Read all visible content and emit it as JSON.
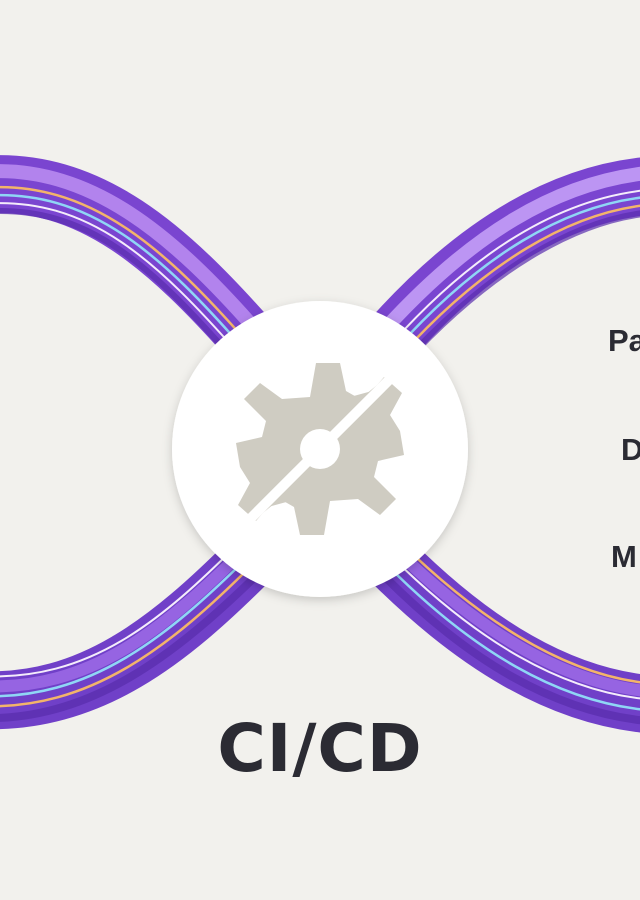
{
  "diagram": {
    "title": "CI/CD",
    "side_labels": [
      "Pa",
      "D",
      "M"
    ],
    "center_icon": "gears-icon",
    "loop_icon": "infinity-loop"
  },
  "colors": {
    "background": "#f2f1ed",
    "band_dark": "#6a38c4",
    "band_mid": "#8a55dc",
    "band_light": "#b88af0",
    "stripe_blue": "#8fd6f5",
    "stripe_orange": "#f3b46a",
    "stripe_white": "#f4ecfb",
    "circle": "#ffffff",
    "gear": "#cfccc2",
    "text": "#2b2b33"
  }
}
